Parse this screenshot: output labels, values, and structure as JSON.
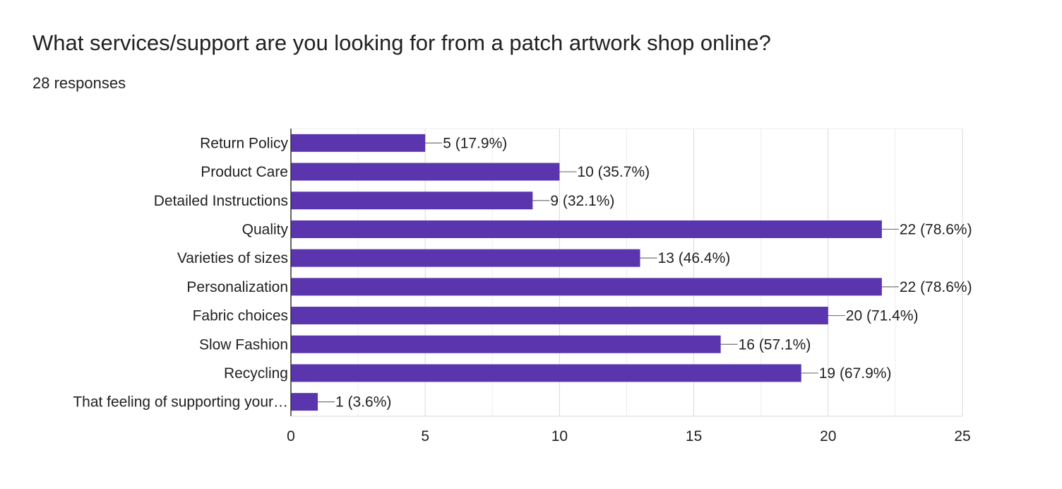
{
  "question": {
    "title": "What services/support are you looking for from a patch artwork shop online?",
    "responses": "28 responses"
  },
  "chart_data": {
    "type": "bar",
    "orientation": "horizontal",
    "bar_color": "#5b35ae",
    "grid": true,
    "categories": [
      "Return Policy",
      "Product Care",
      "Detailed Instructions",
      "Quality",
      "Varieties of sizes",
      "Personalization",
      "Fabric choices",
      "Slow Fashion",
      "Recycling",
      "That feeling of supporting your…"
    ],
    "values": [
      5,
      10,
      9,
      22,
      13,
      22,
      20,
      16,
      19,
      1
    ],
    "value_labels": [
      "5 (17.9%)",
      "10 (35.7%)",
      "9 (32.1%)",
      "22 (78.6%)",
      "13 (46.4%)",
      "22 (78.6%)",
      "20 (71.4%)",
      "16 (57.1%)",
      "19 (67.9%)",
      "1 (3.6%)"
    ],
    "xlim": [
      0,
      25
    ],
    "xticks": [
      0,
      5,
      10,
      15,
      20,
      25
    ],
    "xtick_labels": [
      "0",
      "5",
      "10",
      "15",
      "20",
      "25"
    ]
  }
}
